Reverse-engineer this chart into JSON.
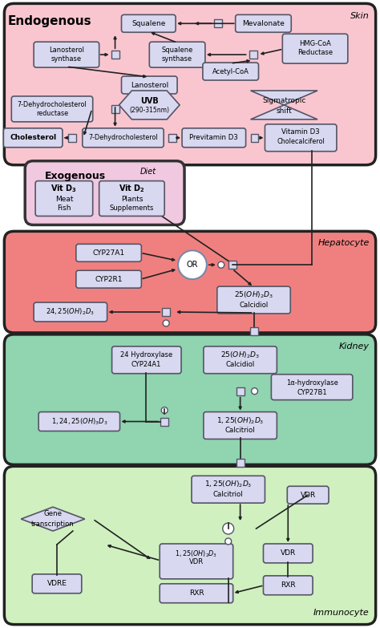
{
  "fig_width": 4.74,
  "fig_height": 7.83,
  "bg_color": "#ffffff",
  "skin_bg": "#f9c6d0",
  "skin_border": "#222222",
  "exog_bg": "#f0c8e0",
  "hepatocyte_bg": "#f08080",
  "kidney_bg": "#90d4b0",
  "immunocyte_bg": "#d0f0c0",
  "box_fill": "#d8d8f0",
  "box_edge": "#555566",
  "arrow_color": "#222222",
  "title_skin": "Skin",
  "title_hepatocyte": "Hepatocyte",
  "title_kidney": "Kidney",
  "title_immunocyte": "Immunocyte"
}
